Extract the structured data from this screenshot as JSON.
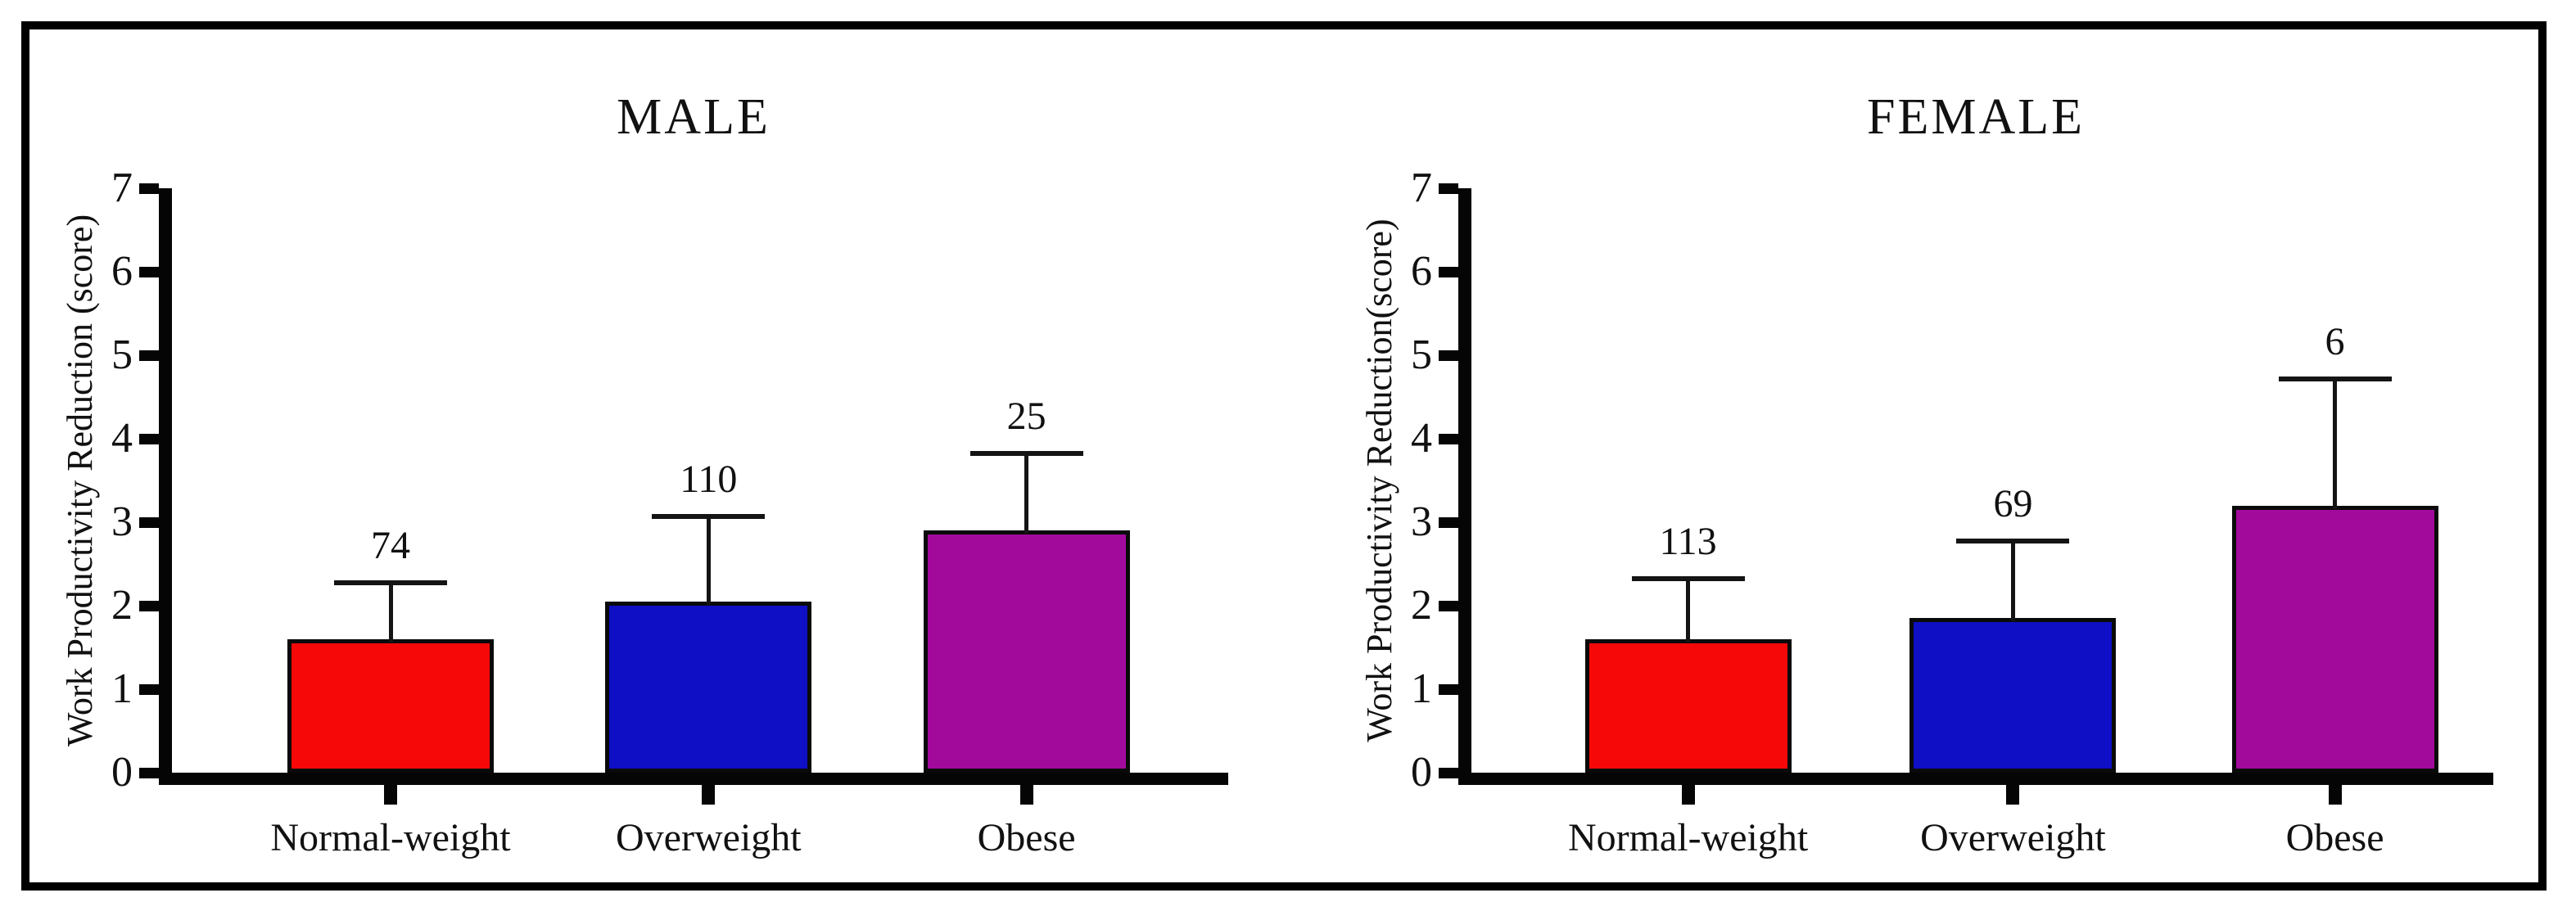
{
  "frame": {
    "background_color": "#ffffff",
    "border_color": "#000000"
  },
  "chart_data": [
    {
      "type": "bar",
      "title": "MALE",
      "ylabel": "Work Productivity Reduction (score)",
      "xlabel": "",
      "ylim": [
        0,
        7
      ],
      "yticks": [
        0,
        1,
        2,
        3,
        4,
        5,
        6,
        7
      ],
      "grid": false,
      "legend": "none",
      "categories": [
        "Normal-weight",
        "Overweight",
        "Obese"
      ],
      "values": [
        1.6,
        2.05,
        2.9
      ],
      "error_bar_tops": [
        2.3,
        3.1,
        3.85
      ],
      "bar_count_labels": [
        "74",
        "110",
        "25"
      ],
      "bar_colors": [
        "#f70808",
        "#0f0fc5",
        "#a20a9c"
      ],
      "bar_edge_color": "#0a0a0a"
    },
    {
      "type": "bar",
      "title": "FEMALE",
      "ylabel": "Work Productivity Reduction(score)",
      "xlabel": "",
      "ylim": [
        0,
        7
      ],
      "yticks": [
        0,
        1,
        2,
        3,
        4,
        5,
        6,
        7
      ],
      "grid": false,
      "legend": "none",
      "categories": [
        "Normal-weight",
        "Overweight",
        "Obese"
      ],
      "values": [
        1.6,
        1.85,
        3.2
      ],
      "error_bar_tops": [
        2.35,
        2.8,
        4.75
      ],
      "bar_count_labels": [
        "113",
        "69",
        "6"
      ],
      "bar_colors": [
        "#f70808",
        "#0f0fc5",
        "#a20a9c"
      ],
      "bar_edge_color": "#0a0a0a"
    }
  ]
}
